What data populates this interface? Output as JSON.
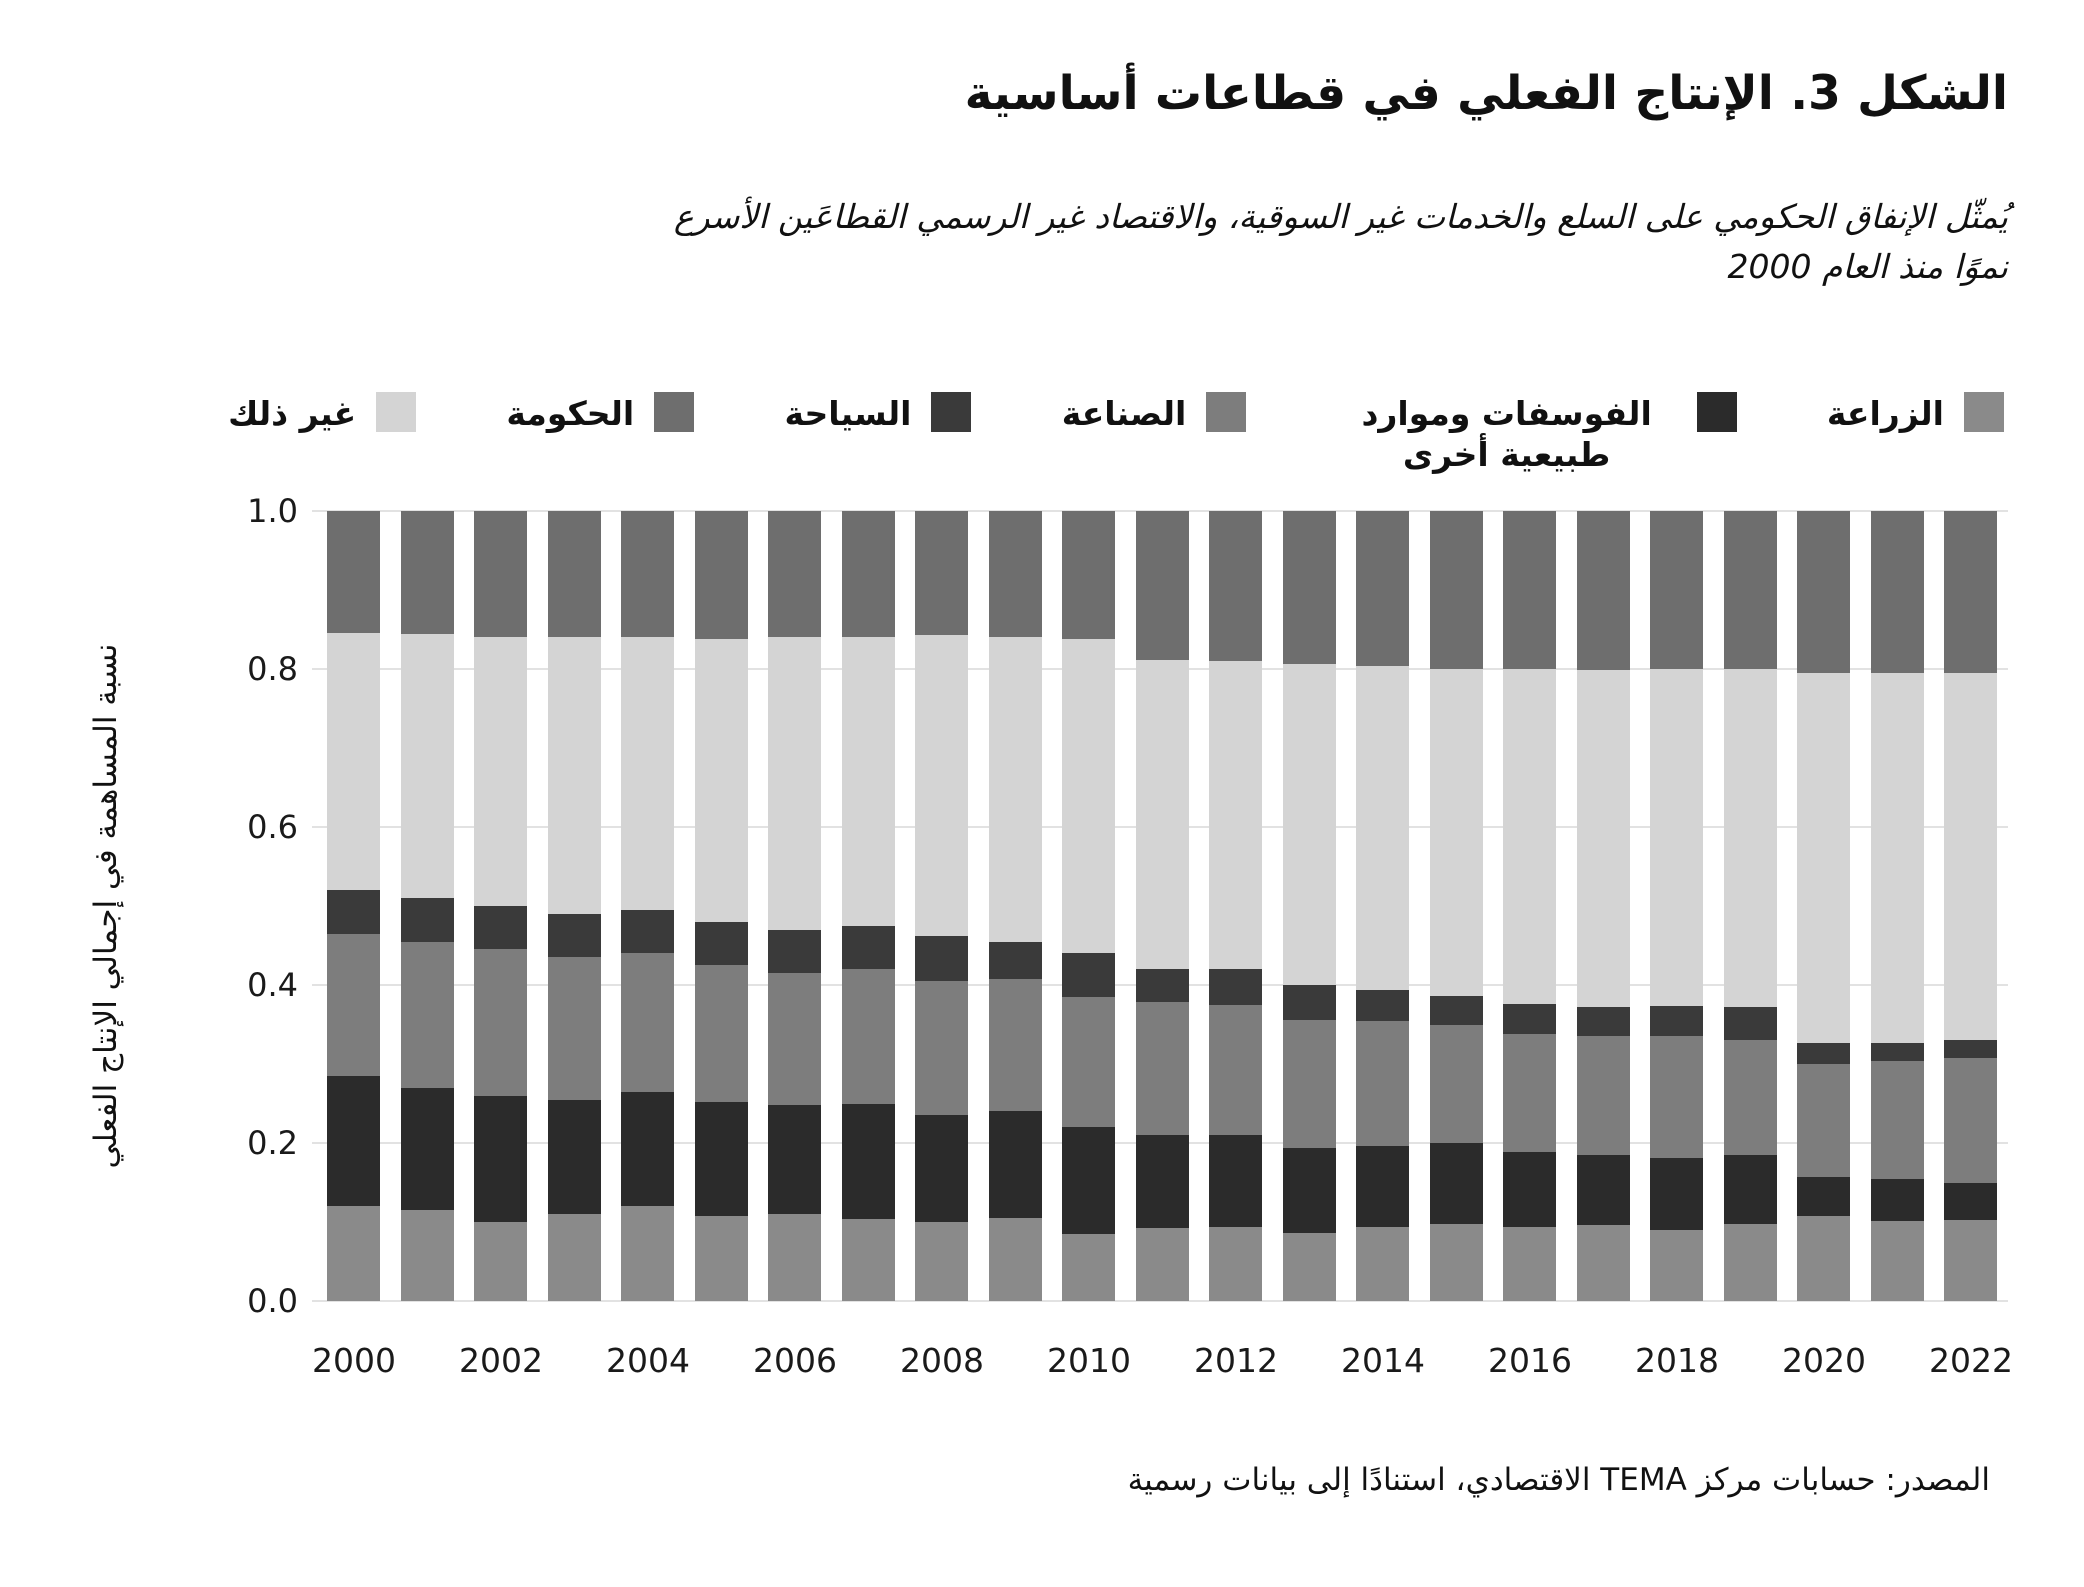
{
  "figure": {
    "title": "الشكل 3. الإنتاج الفعلي في قطاعات أساسية",
    "subtitle_line1": "يُمثّل الإنفاق الحكومي على السلع والخدمات غير السوقية، والاقتصاد غير الرسمي القطاعَين الأسرع",
    "subtitle_line2": "نموًا منذ العام 2000",
    "source": "المصدر: حسابات مركز TEMA الاقتصادي، استنادًا إلى بيانات رسمية"
  },
  "legend": {
    "items": [
      {
        "label": "الزراعة",
        "color": "#8a8a8a",
        "wrap": false
      },
      {
        "label": "الفوسفات وموارد طبيعية أخرى",
        "color": "#2b2b2b",
        "wrap": true
      },
      {
        "label": "الصناعة",
        "color": "#7d7d7d",
        "wrap": false
      },
      {
        "label": "السياحة",
        "color": "#3a3a3a",
        "wrap": false
      },
      {
        "label": "الحكومة",
        "color": "#6e6e6e",
        "wrap": false
      },
      {
        "label": "غير ذلك",
        "color": "#d4d4d4",
        "wrap": false
      }
    ]
  },
  "chart_data": {
    "type": "bar",
    "stacked": true,
    "normalized": true,
    "title": "",
    "xlabel": "",
    "ylabel": "نسبة المساهمة في إجمالي الإنتاج الفعلي",
    "ylim": [
      0.0,
      1.0
    ],
    "grid": true,
    "legend_position": "top",
    "yticks": [
      "0.0",
      "0.2",
      "0.4",
      "0.6",
      "0.8",
      "1.0"
    ],
    "xticks": [
      "2000",
      "2002",
      "2004",
      "2006",
      "2008",
      "2010",
      "2012",
      "2014",
      "2016",
      "2018",
      "2020",
      "2022"
    ],
    "years": [
      2000,
      2001,
      2002,
      2003,
      2004,
      2005,
      2006,
      2007,
      2008,
      2009,
      2010,
      2011,
      2012,
      2013,
      2014,
      2015,
      2016,
      2017,
      2018,
      2019,
      2020,
      2021,
      2022
    ],
    "stack_order": "bottom_to_top",
    "series": [
      {
        "name": "الزراعة",
        "color": "#8a8a8a",
        "values": [
          0.12,
          0.115,
          0.1,
          0.11,
          0.12,
          0.108,
          0.11,
          0.104,
          0.1,
          0.105,
          0.085,
          0.092,
          0.094,
          0.086,
          0.094,
          0.098,
          0.094,
          0.096,
          0.09,
          0.097,
          0.107,
          0.101,
          0.103
        ]
      },
      {
        "name": "الفوسفات وموارد طبيعية أخرى",
        "color": "#2b2b2b",
        "values": [
          0.165,
          0.155,
          0.16,
          0.145,
          0.145,
          0.144,
          0.138,
          0.146,
          0.135,
          0.135,
          0.135,
          0.118,
          0.116,
          0.108,
          0.102,
          0.102,
          0.095,
          0.089,
          0.091,
          0.088,
          0.05,
          0.053,
          0.047
        ]
      },
      {
        "name": "الصناعة",
        "color": "#7d7d7d",
        "values": [
          0.18,
          0.185,
          0.185,
          0.18,
          0.175,
          0.173,
          0.167,
          0.17,
          0.17,
          0.168,
          0.165,
          0.168,
          0.165,
          0.162,
          0.158,
          0.15,
          0.149,
          0.15,
          0.154,
          0.145,
          0.143,
          0.15,
          0.158
        ]
      },
      {
        "name": "السياحة",
        "color": "#3a3a3a",
        "values": [
          0.055,
          0.055,
          0.055,
          0.055,
          0.055,
          0.055,
          0.055,
          0.055,
          0.057,
          0.047,
          0.055,
          0.042,
          0.045,
          0.044,
          0.04,
          0.036,
          0.038,
          0.037,
          0.039,
          0.042,
          0.026,
          0.023,
          0.023
        ]
      },
      {
        "name": "غير ذلك",
        "color": "#d4d4d4",
        "values": [
          0.325,
          0.335,
          0.34,
          0.35,
          0.345,
          0.358,
          0.37,
          0.365,
          0.381,
          0.385,
          0.398,
          0.392,
          0.39,
          0.406,
          0.41,
          0.414,
          0.424,
          0.427,
          0.426,
          0.428,
          0.469,
          0.468,
          0.464
        ]
      },
      {
        "name": "الحكومة",
        "color": "#6e6e6e",
        "values": [
          0.155,
          0.155,
          0.16,
          0.16,
          0.16,
          0.162,
          0.16,
          0.16,
          0.157,
          0.16,
          0.162,
          0.188,
          0.19,
          0.194,
          0.196,
          0.2,
          0.2,
          0.201,
          0.2,
          0.2,
          0.205,
          0.205,
          0.205
        ]
      }
    ]
  }
}
